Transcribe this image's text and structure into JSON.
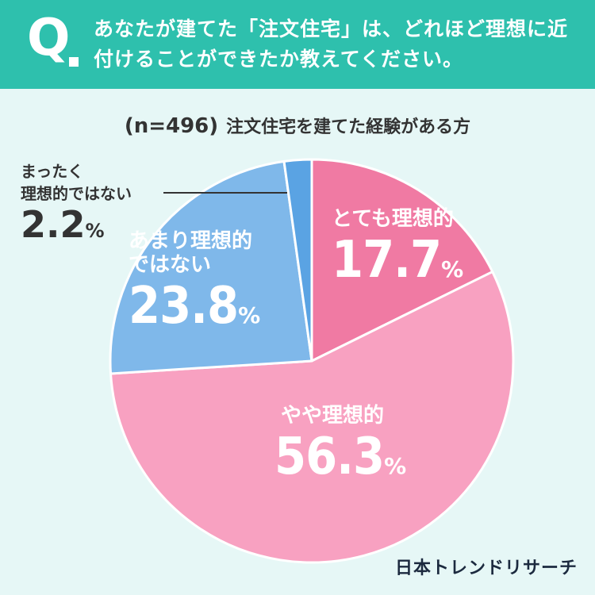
{
  "header": {
    "q_mark": "Q",
    "question": "あなたが建てた「注文住宅」は、どれほど理想に近付けることができたか教えてください。",
    "bg_color": "#2ec0ad"
  },
  "subtitle": {
    "n": "(n=496)",
    "text": "注文住宅を建てた経験がある方"
  },
  "chart_data": {
    "type": "pie",
    "unit": "%",
    "slices": [
      {
        "name": "とても理想的",
        "value": 17.7,
        "color": "#f07aa3"
      },
      {
        "name": "やや理想的",
        "value": 56.3,
        "color": "#f8a1c1"
      },
      {
        "name": "あまり理想的ではない",
        "value": 23.8,
        "color": "#7fb8ea"
      },
      {
        "name": "まったく理想的ではない",
        "value": 2.2,
        "color": "#5aa3e3"
      }
    ]
  },
  "labels": {
    "s0_name": "とても理想的",
    "s0_val": "17.7",
    "s1_name": "やや理想的",
    "s1_val": "56.3",
    "s2_name_1": "あまり理想的",
    "s2_name_2": "ではない",
    "s2_val": "23.8",
    "s3_name_1": "まったく",
    "s3_name_2": "理想的ではない",
    "s3_val": "2.2",
    "pct": "%"
  },
  "brand": "日本トレンドリサーチ"
}
